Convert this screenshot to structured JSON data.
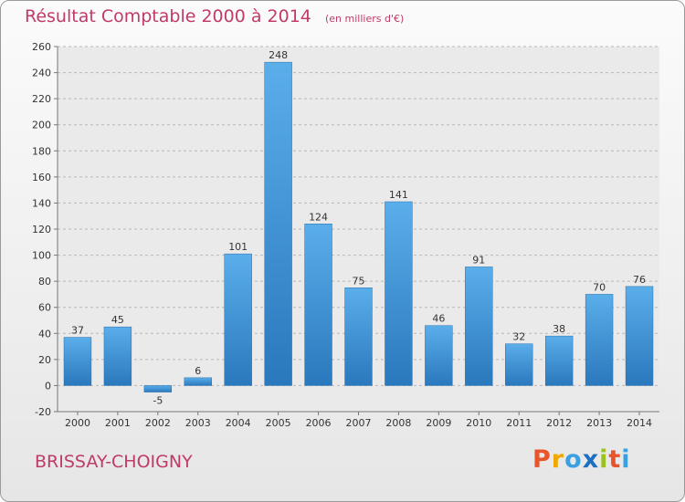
{
  "chart_data": {
    "type": "bar",
    "title": "Résultat Comptable 2000 à 2014",
    "subtitle": "(en milliers d'€)",
    "categories": [
      "2000",
      "2001",
      "2002",
      "2003",
      "2004",
      "2005",
      "2006",
      "2007",
      "2008",
      "2009",
      "2010",
      "2011",
      "2012",
      "2013",
      "2014"
    ],
    "values": [
      37,
      45,
      -5,
      6,
      101,
      248,
      124,
      75,
      141,
      46,
      91,
      32,
      38,
      70,
      76
    ],
    "ylim": [
      -20,
      260
    ],
    "yticks": [
      -20,
      0,
      20,
      40,
      60,
      80,
      100,
      120,
      140,
      160,
      180,
      200,
      220,
      240,
      260
    ],
    "xlabel": "",
    "ylabel": "",
    "grid": true,
    "bar_color": "#3a8fd6"
  },
  "location": "BRISSAY-CHOIGNY",
  "brand": {
    "letters": [
      "P",
      "r",
      "o",
      "x",
      "i",
      "t",
      "i"
    ],
    "colors": [
      "#e8542b",
      "#f0a800",
      "#3aa0e0",
      "#1d6fc4",
      "#9ac21c",
      "#e8542b",
      "#3aa0e0"
    ]
  }
}
